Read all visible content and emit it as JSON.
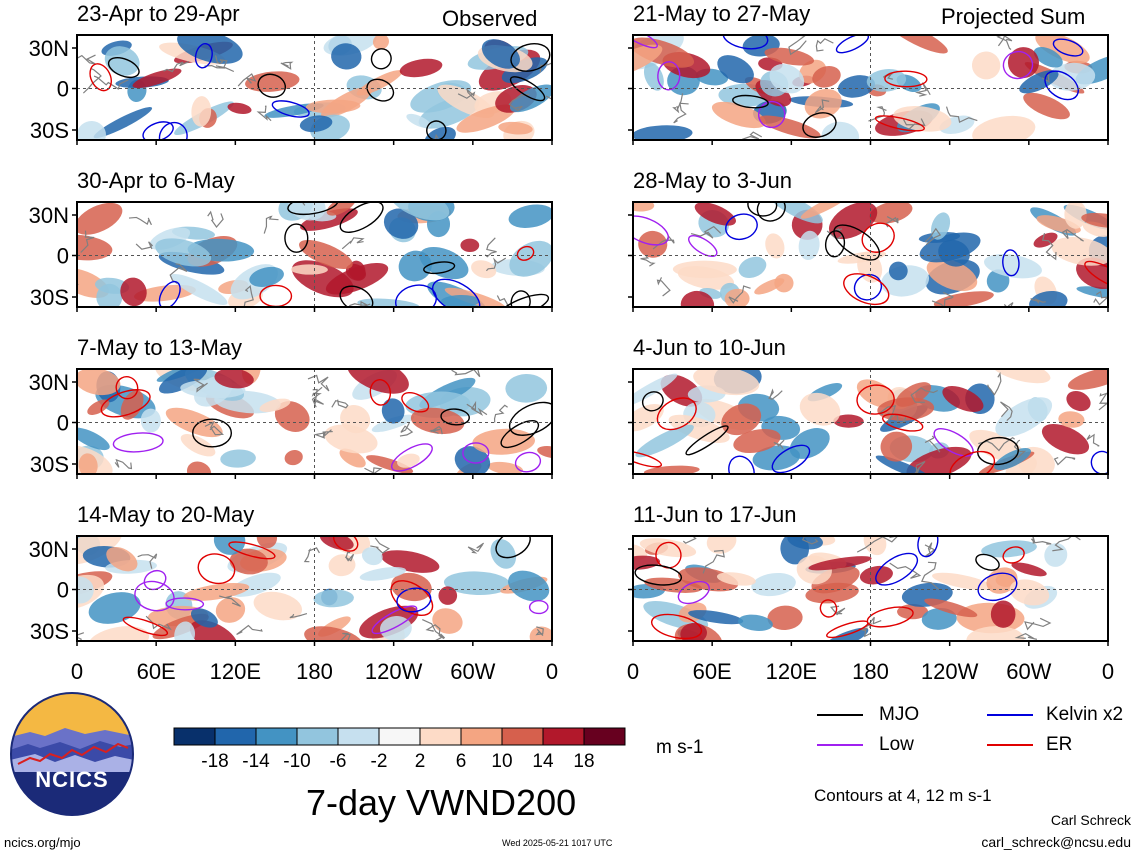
{
  "figure": {
    "title": "7-day VWND200",
    "left_column_label": "Observed",
    "right_column_label": "Projected Sum",
    "y_ticks": [
      "30N",
      "0",
      "30S"
    ],
    "x_ticks": [
      "0",
      "60E",
      "120E",
      "180",
      "120W",
      "60W",
      "0"
    ]
  },
  "panels_left": [
    {
      "period": "23-Apr to 29-Apr"
    },
    {
      "period": "30-Apr to 6-May"
    },
    {
      "period": "7-May to 13-May"
    },
    {
      "period": "14-May to 20-May"
    }
  ],
  "panels_right": [
    {
      "period": "21-May to 27-May"
    },
    {
      "period": "28-May to 3-Jun"
    },
    {
      "period": "4-Jun to 10-Jun"
    },
    {
      "period": "11-Jun to 17-Jun"
    }
  ],
  "colorbar": {
    "ticks": [
      "-18",
      "-14",
      "-10",
      "-6",
      "-2",
      "2",
      "6",
      "10",
      "14",
      "18"
    ],
    "units": "m s-1",
    "colors": [
      "#08306b",
      "#2166ac",
      "#4393c3",
      "#92c5de",
      "#c6e0ef",
      "#f7f7f7",
      "#fddbc7",
      "#f4a582",
      "#d6604d",
      "#b2182b",
      "#67001f"
    ]
  },
  "legend": {
    "items": [
      {
        "label": "MJO",
        "color": "#000000"
      },
      {
        "label": "Kelvin x2",
        "color": "#0000dd"
      },
      {
        "label": "Low",
        "color": "#a020f0"
      },
      {
        "label": "ER",
        "color": "#e00000"
      }
    ],
    "contours_note": "Contours at 4, 12 m s-1"
  },
  "logo": {
    "text": "NCICS"
  },
  "footer": {
    "url": "ncics.org/mjo",
    "timestamp": "Wed 2025-05-21 1017 UTC",
    "author": "Carl Schreck",
    "email": "carl_schreck@ncsu.edu"
  }
}
